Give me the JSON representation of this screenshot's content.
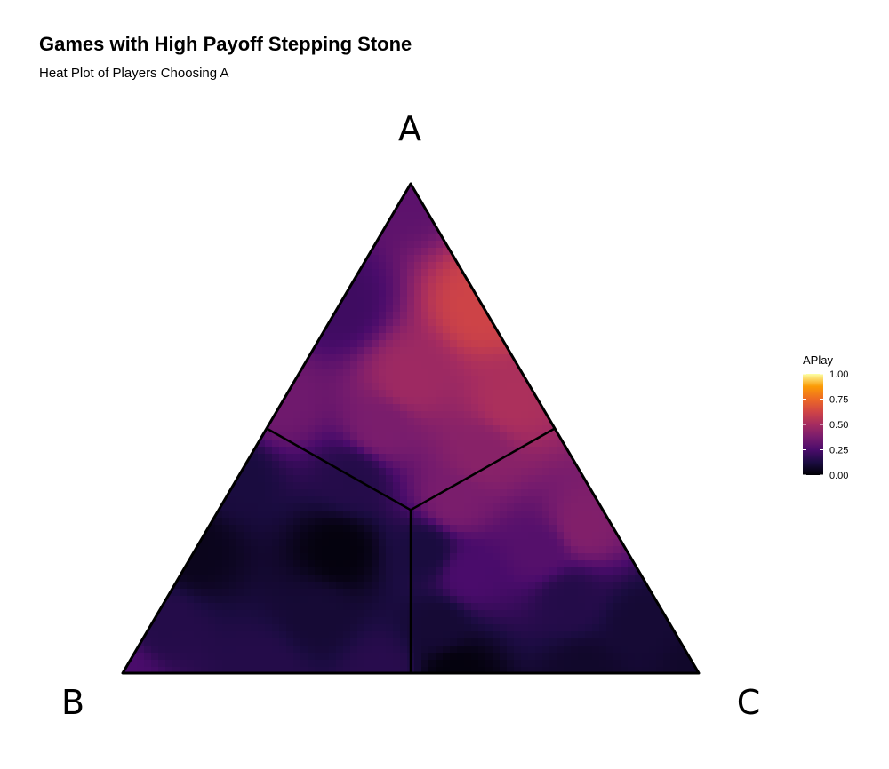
{
  "chart_data": {
    "type": "heatmap",
    "subtype": "ternary",
    "title": "Games with High Payoff Stepping Stone",
    "subtitle": "Heat Plot of Players Choosing A",
    "vertices": {
      "top": "A",
      "left": "B",
      "right": "C"
    },
    "fill_variable": "APlay",
    "colorscale": "inferno",
    "legend": {
      "title": "APlay",
      "ticks": [
        "0.00",
        "0.25",
        "0.50",
        "0.75",
        "1.00"
      ],
      "tick_values": [
        0,
        0.25,
        0.5,
        0.75,
        1
      ],
      "range": [
        0,
        1
      ],
      "position": "right"
    },
    "region_boundaries": [
      {
        "from": [
          0.3333,
          0.3333,
          0.3333
        ],
        "to": [
          0.5,
          0.0,
          0.5
        ]
      },
      {
        "from": [
          0.3333,
          0.3333,
          0.3333
        ],
        "to": [
          0.0,
          0.5,
          0.5
        ]
      },
      {
        "from": [
          0.3333,
          0.3333,
          0.3333
        ],
        "to": [
          0.5,
          0.5,
          0.0
        ]
      }
    ],
    "points": [
      {
        "a": 1.0,
        "b": 0.0,
        "c": 0.0,
        "value": 0.3
      },
      {
        "a": 0.75,
        "b": 0.25,
        "c": 0.0,
        "value": 0.22
      },
      {
        "a": 0.75,
        "b": 0.0,
        "c": 0.25,
        "value": 0.62
      },
      {
        "a": 0.6,
        "b": 0.2,
        "c": 0.2,
        "value": 0.48
      },
      {
        "a": 0.55,
        "b": 0.45,
        "c": 0.0,
        "value": 0.35
      },
      {
        "a": 0.5,
        "b": 0.3,
        "c": 0.2,
        "value": 0.38
      },
      {
        "a": 0.55,
        "b": 0.05,
        "c": 0.4,
        "value": 0.52
      },
      {
        "a": 0.45,
        "b": 0.15,
        "c": 0.4,
        "value": 0.42
      },
      {
        "a": 0.4,
        "b": 0.6,
        "c": 0.0,
        "value": 0.12
      },
      {
        "a": 0.4,
        "b": 0.4,
        "c": 0.2,
        "value": 0.15
      },
      {
        "a": 0.35,
        "b": 0.25,
        "c": 0.4,
        "value": 0.38
      },
      {
        "a": 0.3,
        "b": 0.05,
        "c": 0.65,
        "value": 0.4
      },
      {
        "a": 0.25,
        "b": 0.75,
        "c": 0.0,
        "value": 0.05
      },
      {
        "a": 0.25,
        "b": 0.5,
        "c": 0.25,
        "value": 0.02
      },
      {
        "a": 0.25,
        "b": 0.35,
        "c": 0.4,
        "value": 0.12
      },
      {
        "a": 0.25,
        "b": 0.15,
        "c": 0.6,
        "value": 0.28
      },
      {
        "a": 0.2,
        "b": 0.3,
        "c": 0.5,
        "value": 0.25
      },
      {
        "a": 0.15,
        "b": 0.15,
        "c": 0.7,
        "value": 0.15
      },
      {
        "a": 0.12,
        "b": 0.6,
        "c": 0.28,
        "value": 0.1
      },
      {
        "a": 0.1,
        "b": 0.88,
        "c": 0.02,
        "value": 0.15
      },
      {
        "a": 0.1,
        "b": 0.4,
        "c": 0.5,
        "value": 0.1
      },
      {
        "a": 0.1,
        "b": 0.05,
        "c": 0.85,
        "value": 0.1
      },
      {
        "a": 0.0,
        "b": 1.0,
        "c": 0.0,
        "value": 0.25
      },
      {
        "a": 0.0,
        "b": 0.75,
        "c": 0.25,
        "value": 0.15
      },
      {
        "a": 0.0,
        "b": 0.55,
        "c": 0.45,
        "value": 0.16
      },
      {
        "a": 0.0,
        "b": 0.42,
        "c": 0.58,
        "value": 0.02
      },
      {
        "a": 0.0,
        "b": 0.2,
        "c": 0.8,
        "value": 0.08
      },
      {
        "a": 0.0,
        "b": 0.0,
        "c": 1.0,
        "value": 0.08
      }
    ]
  }
}
